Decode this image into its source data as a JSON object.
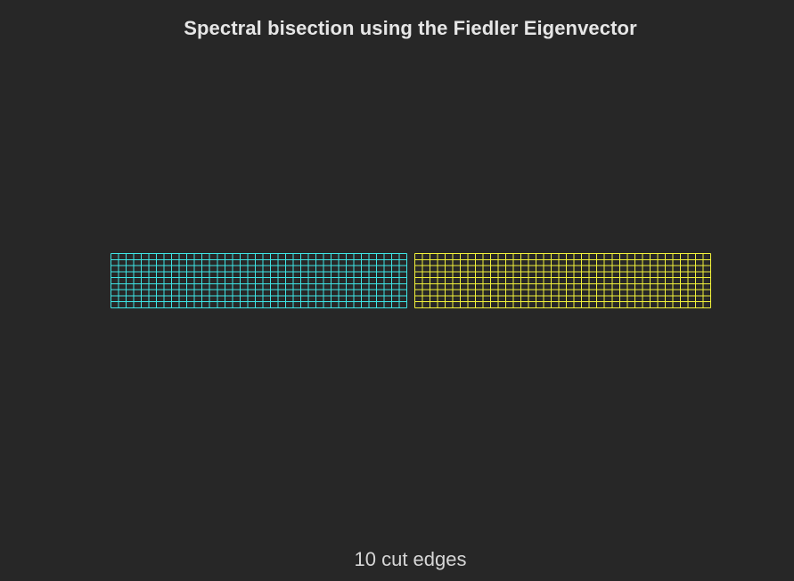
{
  "figure": {
    "title": "Spectral bisection using the Fiedler Eigenvector",
    "caption": "10 cut edges",
    "background_color": "#272727"
  },
  "chart_data": {
    "type": "grid-graph-partition",
    "grid": {
      "columns": 80,
      "rows": 10
    },
    "partitions": [
      {
        "columns_from": 0,
        "columns_to": 39,
        "color": "#3ee6e6"
      },
      {
        "columns_from": 40,
        "columns_to": 79,
        "color": "#f2f23a"
      }
    ],
    "cut_edges": 10,
    "cut_edge_color": "#272727"
  }
}
